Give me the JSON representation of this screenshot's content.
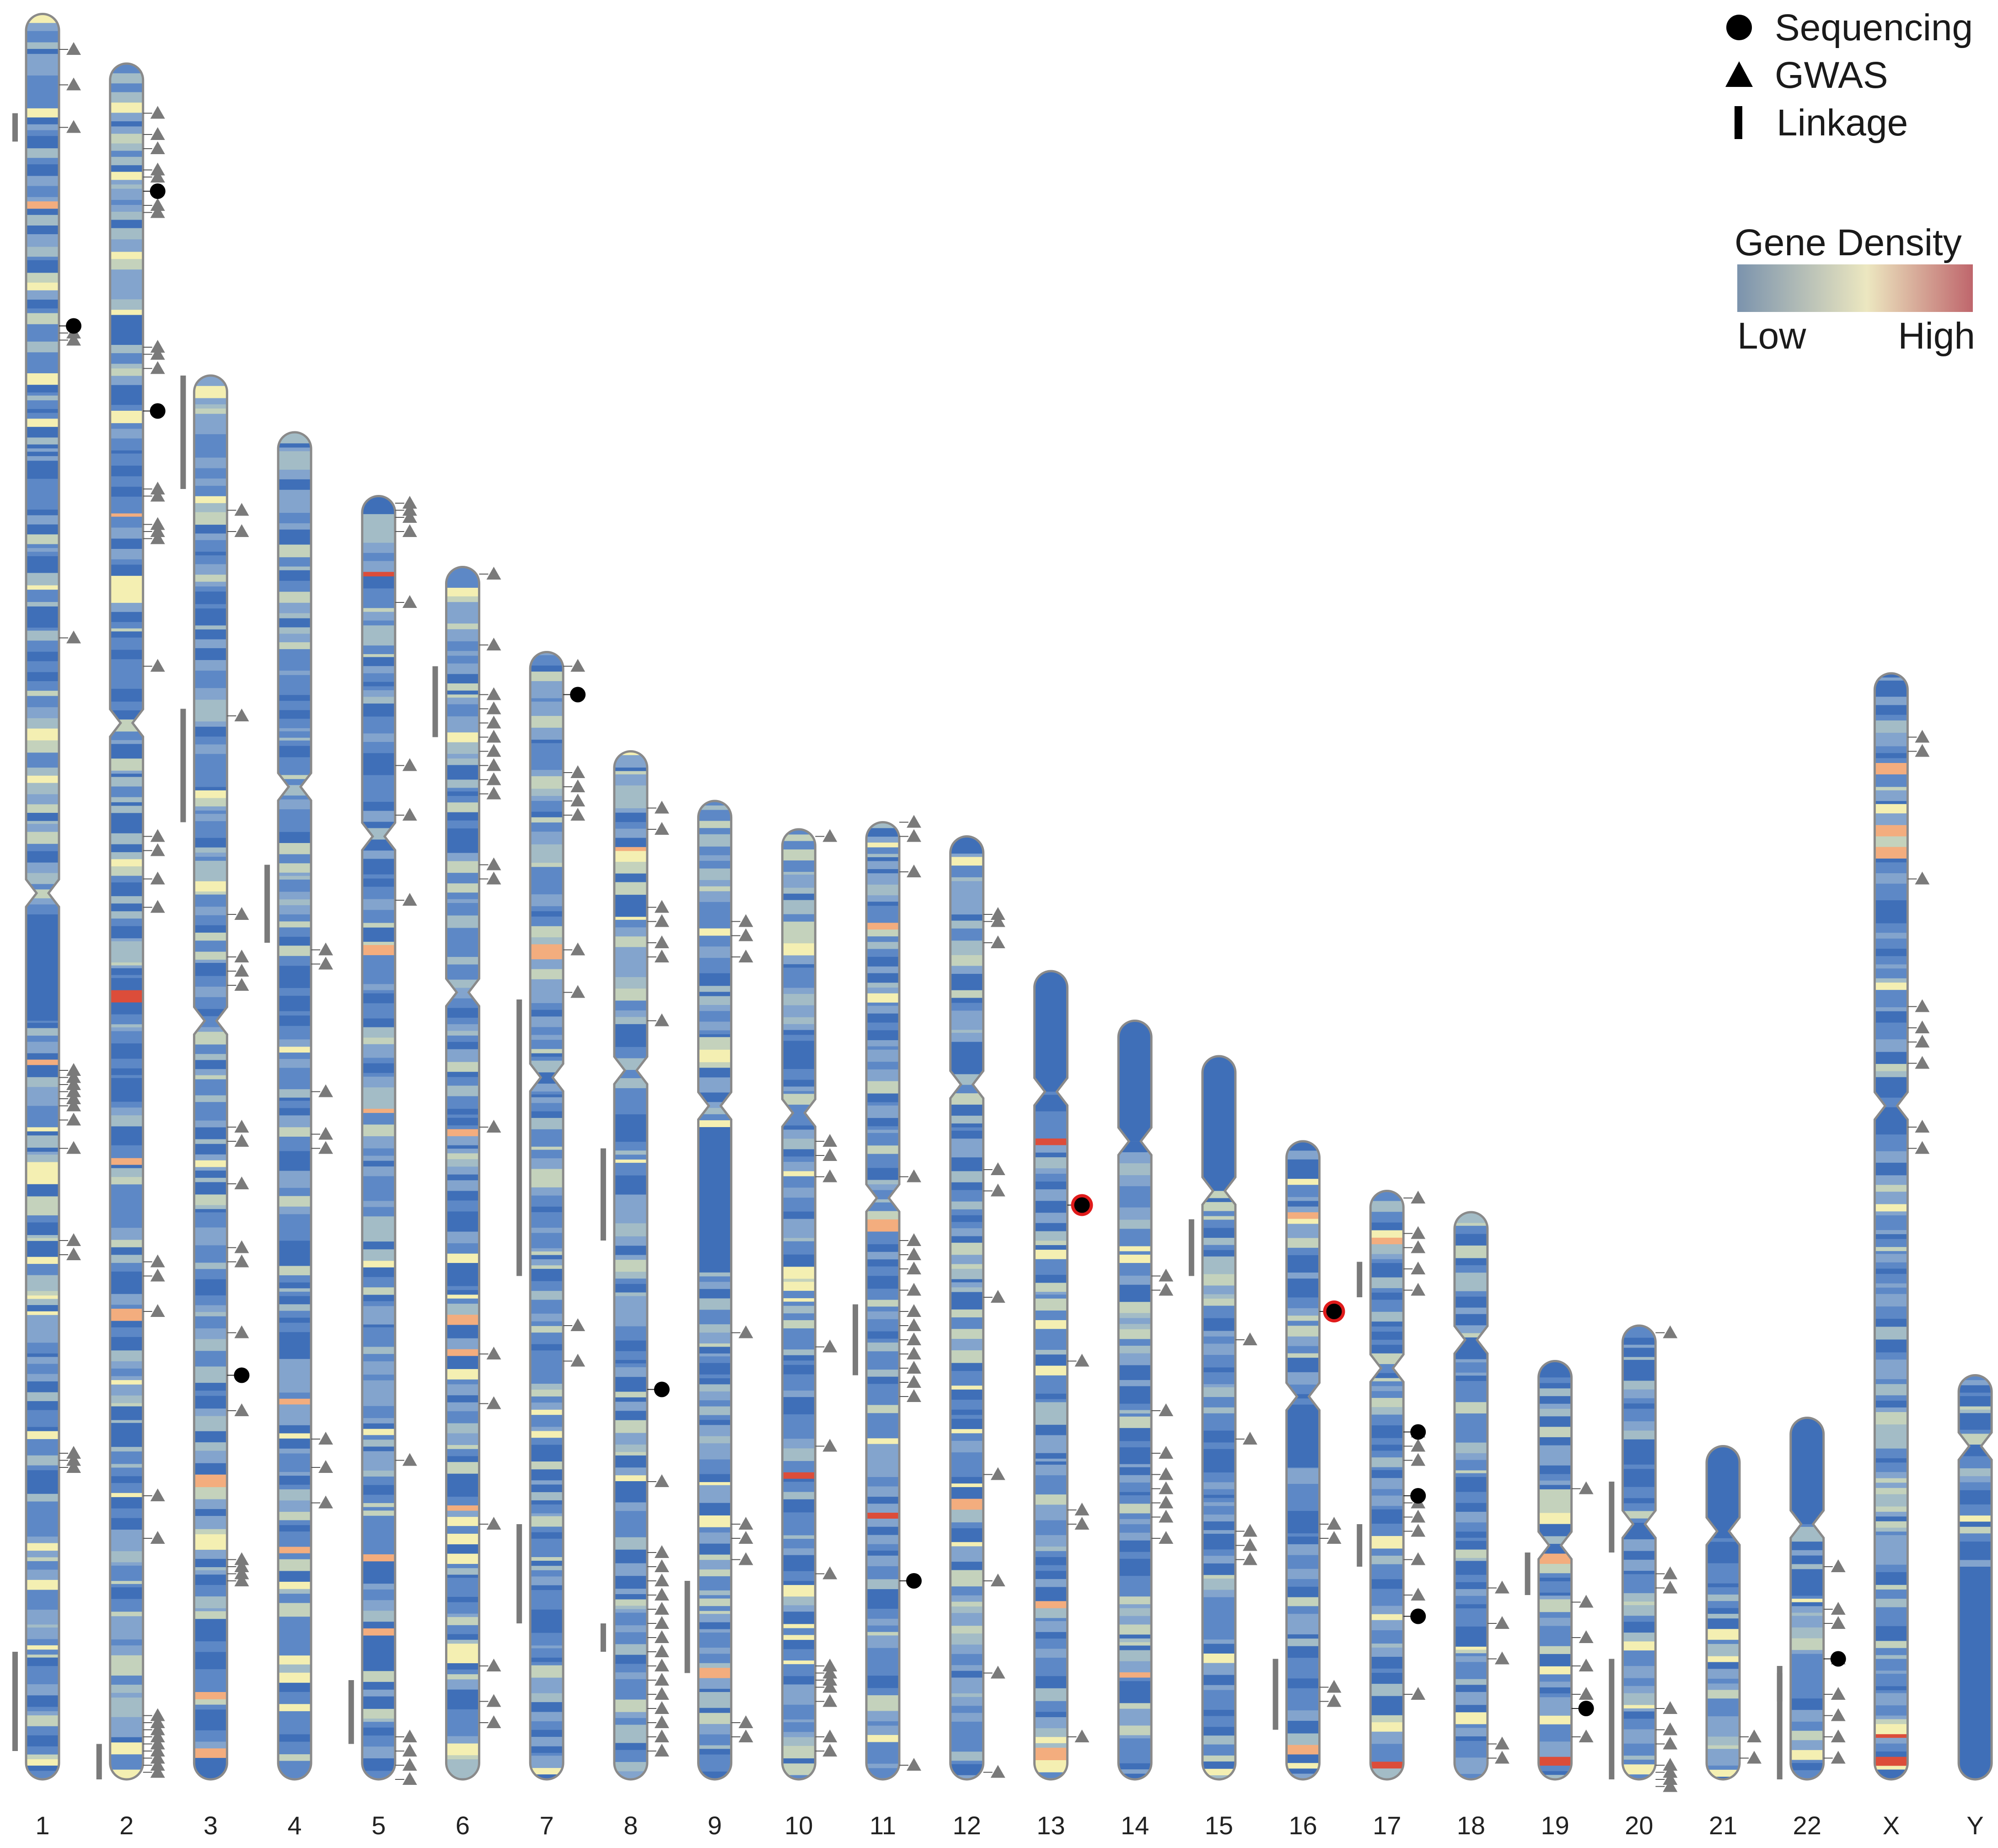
{
  "chart_data": {
    "type": "ideogram",
    "title": "",
    "chromosome_labels": [
      "1",
      "2",
      "3",
      "4",
      "5",
      "6",
      "7",
      "8",
      "9",
      "10",
      "11",
      "12",
      "13",
      "14",
      "15",
      "16",
      "17",
      "18",
      "19",
      "20",
      "21",
      "22",
      "X",
      "Y"
    ],
    "chromosome_lengths_mb": [
      249,
      242,
      198,
      190,
      181,
      171,
      159,
      145,
      138,
      134,
      135,
      133,
      114,
      107,
      102,
      90,
      83,
      80,
      59,
      64,
      47,
      51,
      156,
      57
    ],
    "centromere_mb": [
      124,
      93,
      91,
      50,
      48,
      60,
      60,
      45,
      43,
      40,
      53,
      35,
      17,
      17,
      19,
      36,
      25,
      18,
      26,
      28,
      12,
      15,
      61,
      10
    ],
    "markers": {
      "1": {
        "gwas": [
          5,
          10,
          16,
          45,
          46,
          88,
          149,
          150,
          151,
          152,
          153,
          154,
          156,
          160,
          173,
          175,
          203,
          204,
          205
        ],
        "sequencing": [
          44
        ],
        "linkage": [
          [
            14,
            18
          ],
          [
            231,
            245
          ]
        ]
      },
      "2": {
        "gwas": [
          7,
          10,
          12,
          15,
          16,
          20,
          21,
          40,
          41,
          43,
          60,
          61,
          65,
          66,
          67,
          85,
          109,
          111,
          115,
          119,
          169,
          171,
          176,
          202,
          208,
          233,
          234,
          235,
          236,
          237,
          238,
          239,
          240,
          241
        ],
        "sequencing": [
          18,
          49
        ],
        "linkage": [
          [
            237,
            242
          ]
        ]
      },
      "3": {
        "gwas": [
          19,
          22,
          48,
          76,
          82,
          84,
          86,
          106,
          108,
          114,
          123,
          125,
          135,
          146,
          167,
          168,
          169,
          170
        ],
        "sequencing": [
          141
        ],
        "linkage": [
          [
            0,
            16
          ],
          [
            47,
            63
          ]
        ]
      },
      "4": {
        "gwas": [
          73,
          75,
          93,
          99,
          101,
          142,
          146,
          151
        ],
        "sequencing": [],
        "linkage": [
          [
            61,
            72
          ]
        ]
      },
      "5": {
        "gwas": [
          1,
          2,
          3,
          5,
          15,
          38,
          45,
          57,
          136,
          175,
          177,
          179,
          181
        ],
        "sequencing": [],
        "linkage": [
          [
            167,
            176
          ]
        ]
      },
      "6": {
        "gwas": [
          1,
          11,
          18,
          20,
          22,
          24,
          26,
          28,
          30,
          32,
          42,
          44,
          79,
          111,
          118,
          135,
          155,
          160,
          163
        ],
        "sequencing": [],
        "linkage": [
          [
            14,
            24
          ]
        ]
      },
      "7": {
        "gwas": [
          2,
          17,
          19,
          21,
          23,
          42,
          48,
          95,
          100
        ],
        "sequencing": [
          6
        ],
        "linkage": [
          [
            49,
            88
          ],
          [
            123,
            137
          ]
        ]
      },
      "8": {
        "gwas": [
          8,
          11,
          22,
          24,
          27,
          29,
          38,
          103,
          113,
          115,
          117,
          119,
          121,
          123,
          125,
          127,
          129,
          131,
          133,
          135,
          137,
          139,
          141
        ],
        "sequencing": [
          90
        ],
        "linkage": [
          [
            56,
            69
          ],
          [
            123,
            127
          ]
        ]
      },
      "9": {
        "gwas": [
          17,
          19,
          22,
          75,
          102,
          104,
          107,
          130,
          132
        ],
        "sequencing": [],
        "linkage": [
          [
            110,
            123
          ]
        ]
      },
      "10": {
        "gwas": [
          1,
          44,
          46,
          49,
          73,
          87,
          105,
          118,
          119,
          120,
          121,
          123,
          128,
          130
        ],
        "sequencing": [],
        "linkage": []
      },
      "11": {
        "gwas": [
          0,
          2,
          7,
          50,
          59,
          61,
          63,
          66,
          69,
          71,
          73,
          75,
          77,
          79,
          81,
          133
        ],
        "sequencing": [
          107
        ],
        "linkage": [
          [
            68,
            78
          ]
        ]
      },
      "12": {
        "gwas": [
          11,
          12,
          15,
          47,
          50,
          65,
          90,
          105,
          118,
          132
        ],
        "sequencing": [],
        "linkage": []
      },
      "13": {
        "gwas": [
          55,
          76,
          78,
          108
        ],
        "sequencing": [
          33
        ],
        "linkage": []
      },
      "14": {
        "gwas": [
          36,
          38,
          55,
          61,
          64,
          66,
          68,
          70,
          73
        ],
        "sequencing": [],
        "linkage": []
      },
      "15": {
        "gwas": [
          40,
          54,
          67,
          69,
          71
        ],
        "sequencing": [],
        "linkage": [
          [
            23,
            31
          ]
        ]
      },
      "16": {
        "gwas": [
          54,
          56,
          77,
          79
        ],
        "sequencing": [
          24
        ],
        "linkage": [
          [
            73,
            83
          ]
        ]
      },
      "17": {
        "gwas": [
          1,
          6,
          8,
          11,
          14,
          34,
          36,
          38,
          44,
          46,
          48,
          52,
          57,
          71
        ],
        "sequencing": [
          34,
          43,
          60
        ],
        "linkage": [
          [
            10,
            15
          ],
          [
            47,
            53
          ]
        ]
      },
      "18": {
        "gwas": [
          53,
          58,
          63,
          75,
          77
        ],
        "sequencing": [],
        "linkage": []
      },
      "19": {
        "gwas": [
          18,
          34,
          39,
          43,
          47,
          53
        ],
        "sequencing": [
          49
        ],
        "linkage": [
          [
            27,
            33
          ]
        ]
      },
      "20": {
        "gwas": [
          1,
          35,
          37,
          54,
          57,
          59,
          62,
          63,
          64,
          65
        ],
        "sequencing": [],
        "linkage": [
          [
            22,
            32
          ],
          [
            47,
            64
          ]
        ]
      },
      "21": {
        "gwas": [
          41,
          44
        ],
        "sequencing": [],
        "linkage": []
      },
      "22": {
        "gwas": [
          21,
          27,
          29,
          34,
          39,
          42,
          45,
          48
        ],
        "sequencing": [
          34
        ],
        "linkage": [
          [
            35,
            40
          ],
          [
            36,
            51
          ]
        ]
      },
      "X": {
        "gwas": [
          9,
          11,
          29,
          47,
          50,
          52,
          55,
          64,
          67
        ],
        "sequencing": [],
        "linkage": []
      },
      "Y": {
        "gwas": [],
        "sequencing": [],
        "linkage": []
      }
    },
    "highlighted_sequencing": [
      {
        "chromosome": "13",
        "position_mb": 33
      },
      {
        "chromosome": "16",
        "position_mb": 24
      }
    ],
    "legend": {
      "marker_entries": [
        {
          "symbol": "circle",
          "label": "Sequencing"
        },
        {
          "symbol": "triangle",
          "label": "GWAS"
        },
        {
          "symbol": "bar",
          "label": "Linkage"
        }
      ],
      "gradient_title": "Gene Density",
      "gradient_low_label": "Low",
      "gradient_high_label": "High",
      "gradient_colors": [
        "#7b93ad",
        "#ece7c0",
        "#bf666c"
      ]
    },
    "band_colors": [
      "#3f6fb8",
      "#5d88c6",
      "#83a4cd",
      "#a3bcc6",
      "#c4d2bc",
      "#f4efb2",
      "#f3ad7e",
      "#dc4d3a"
    ],
    "colors": {
      "outline": "#8a8a8a",
      "marker_gray": "#7a7a7a",
      "marker_black": "#000000",
      "highlight_ring": "#e01b1b"
    }
  }
}
